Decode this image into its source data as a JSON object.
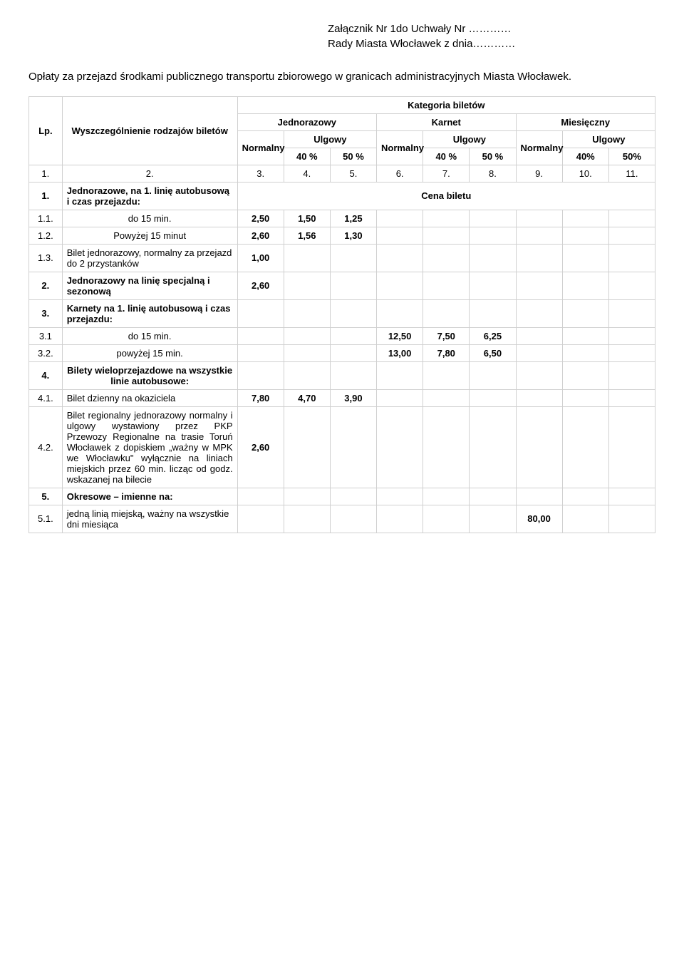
{
  "header": {
    "line1": "Załącznik Nr 1do Uchwały  Nr …………",
    "line2": "Rady Miasta Włocławek z dnia…………"
  },
  "intro": "Opłaty za przejazd środkami publicznego transportu zbiorowego w granicach administracyjnych Miasta Włocławek.",
  "thead": {
    "lp": "Lp.",
    "wysz": "Wyszczególnienie rodzajów  biletów",
    "kategoria": "Kategoria  biletów",
    "jednorazowy": "Jednorazowy",
    "karnet": "Karnet",
    "miesieczny": "Miesięczny",
    "normalny": "Normalny",
    "ulgowy": "Ulgowy",
    "p40": "40 %",
    "p50": "50 %",
    "p40n": "40%",
    "p50n": "50%"
  },
  "numrow": {
    "n1": "1.",
    "n2": "2.",
    "n3": "3.",
    "n4": "4.",
    "n5": "5.",
    "n6": "6.",
    "n7": "7.",
    "n8": "8.",
    "n9": "9.",
    "n10": "10.",
    "n11": "11."
  },
  "rows": {
    "r1": {
      "lp": "1.",
      "desc": "Jednorazowe,  na  1. linię autobusową i czas przejazdu:",
      "cena": "Cena  biletu"
    },
    "r11": {
      "lp": "1.1.",
      "desc": "do 15 min.",
      "v1": "2,50",
      "v2": "1,50",
      "v3": "1,25"
    },
    "r12": {
      "lp": "1.2.",
      "desc": "Powyżej 15 minut",
      "v1": "2,60",
      "v2": "1,56",
      "v3": "1,30"
    },
    "r13": {
      "lp": "1.3.",
      "desc": "Bilet jednorazowy, normalny  za przejazd do 2 przystanków",
      "v1": "1,00"
    },
    "r2": {
      "lp": "2.",
      "desc": "Jednorazowy na linię specjalną i sezonową",
      "v1": "2,60"
    },
    "r3": {
      "lp": "3.",
      "desc": "Karnety  na 1. linię autobusową   i czas przejazdu:"
    },
    "r31": {
      "lp": "3.1",
      "desc": "do 15 min.",
      "v4": "12,50",
      "v5": "7,50",
      "v6": "6,25"
    },
    "r32": {
      "lp": "3.2.",
      "desc": "powyżej 15 min.",
      "v4": "13,00",
      "v5": "7,80",
      "v6": "6,50"
    },
    "r4": {
      "lp": "4.",
      "desc": "Bilety wieloprzejazdowe  na wszystkie  linie autobusowe:"
    },
    "r41": {
      "lp": "4.1.",
      "desc": "Bilet dzienny na okaziciela",
      "v1": "7,80",
      "v2": "4,70",
      "v3": "3,90"
    },
    "r42": {
      "lp": "4.2.",
      "desc": "Bilet regionalny jednorazowy normalny i ulgowy wystawiony przez PKP  Przewozy Regionalne na trasie Toruń Włocławek z dopiskiem „ważny w MPK we Włocławku\"  wyłącznie na liniach miejskich przez 60 min. licząc od godz. wskazanej na bilecie",
      "v1": "2,60"
    },
    "r5": {
      "lp": "5.",
      "desc": "Okresowe – imienne  na:"
    },
    "r51": {
      "lp": "5.1.",
      "desc": "jedną linią miejską,  ważny na  wszystkie dni miesiąca",
      "v7": "80,00"
    }
  }
}
